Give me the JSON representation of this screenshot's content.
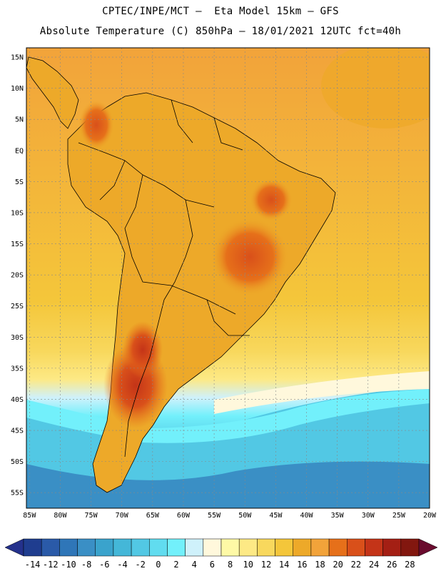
{
  "header": {
    "line1": "CPTEC/INPE/MCT –  Eta Model 15km – GFS",
    "line2": "Absolute Temperature (C) 850hPa – 18/01/2021 12UTC fct=40h"
  },
  "map": {
    "lat_labels": [
      "15N",
      "10N",
      "5N",
      "EQ",
      "5S",
      "10S",
      "15S",
      "20S",
      "25S",
      "30S",
      "35S",
      "40S",
      "45S",
      "50S",
      "55S"
    ],
    "lon_labels": [
      "85W",
      "80W",
      "75W",
      "70W",
      "65W",
      "60W",
      "55W",
      "50W",
      "45W",
      "40W",
      "35W",
      "30W",
      "25W",
      "20W"
    ],
    "lat_range": [
      16.5,
      -57.5
    ],
    "lon_range": [
      -85.5,
      -20.0
    ]
  },
  "colorbar": {
    "labels": [
      "-14",
      "-12",
      "-10",
      "-8",
      "-6",
      "-4",
      "-2",
      "0",
      "2",
      "4",
      "6",
      "8",
      "10",
      "12",
      "14",
      "16",
      "18",
      "20",
      "22",
      "24",
      "26",
      "28"
    ],
    "colors": [
      "#1f3d8f",
      "#2a5aa8",
      "#2f76b8",
      "#3a8fc5",
      "#3aa3cc",
      "#44b7d8",
      "#52c8e4",
      "#61dcef",
      "#72f0fb",
      "#cff1fb",
      "#fff8dc",
      "#fef9a6",
      "#fde985",
      "#f8d85d",
      "#f4c63a",
      "#eda929",
      "#f2a33a",
      "#e6701a",
      "#d9501a",
      "#c43418",
      "#a41f14",
      "#82170f"
    ],
    "under_color": "#24318c",
    "over_color": "#6a0b2e"
  }
}
